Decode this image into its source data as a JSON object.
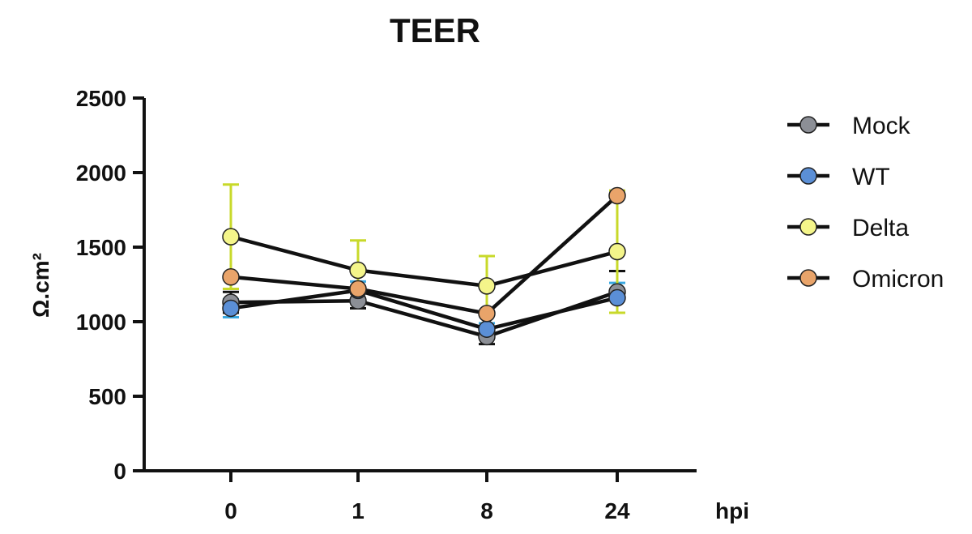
{
  "chart_data": {
    "type": "line",
    "title": "TEER",
    "xlabel": "hpi",
    "ylabel": "Ω.cm²",
    "categories": [
      "0",
      "1",
      "8",
      "24"
    ],
    "ylim": [
      0,
      2500
    ],
    "yticks": [
      0,
      500,
      1000,
      1500,
      2000,
      2500
    ],
    "series": [
      {
        "name": "Mock",
        "color": "#8c8f96",
        "errcolor": "#111111",
        "values": [
          1130,
          1140,
          900,
          1200
        ],
        "err": [
          70,
          50,
          50,
          140
        ]
      },
      {
        "name": "WT",
        "color": "#5b8fd6",
        "errcolor": "#3aa8e0",
        "values": [
          1090,
          1210,
          950,
          1160
        ],
        "err": [
          60,
          60,
          40,
          100
        ]
      },
      {
        "name": "Delta",
        "color": "#f4f58a",
        "errcolor": "#c8d92a",
        "values": [
          1570,
          1345,
          1240,
          1470
        ],
        "err": [
          350,
          200,
          200,
          410
        ]
      },
      {
        "name": "Omicron",
        "color": "#e9a46a",
        "errcolor": "#111111",
        "values": [
          1300,
          1220,
          1055,
          1845
        ],
        "err": [
          0,
          0,
          0,
          0
        ]
      }
    ]
  }
}
